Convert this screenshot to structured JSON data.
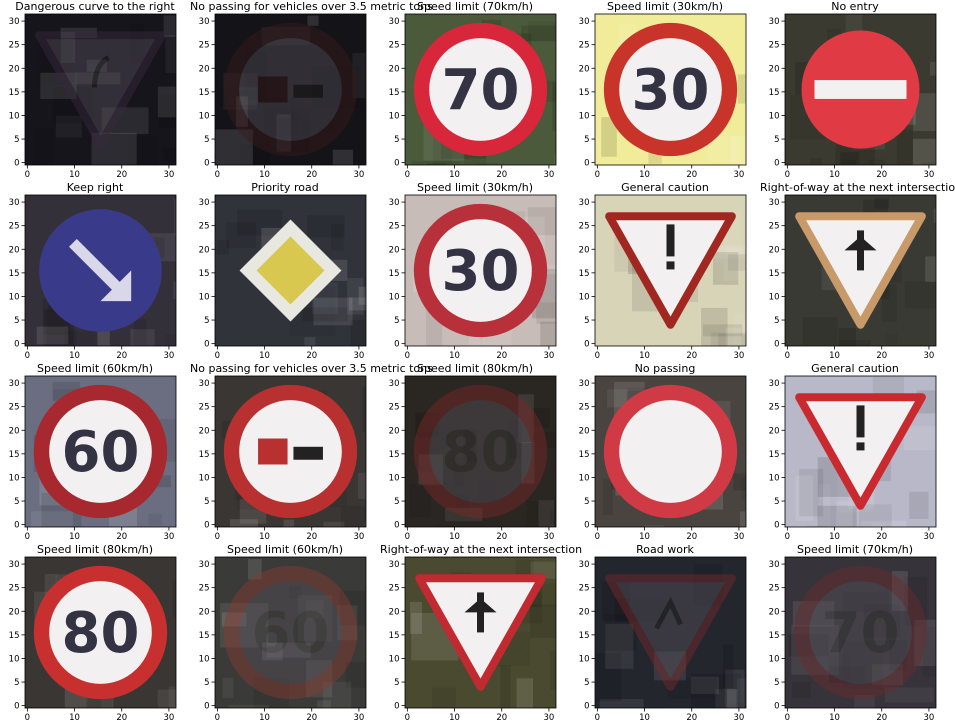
{
  "chart_data": {
    "type": "image-grid",
    "rows": 4,
    "cols": 5,
    "x_ticks": [
      0,
      10,
      20,
      30
    ],
    "y_ticks": [
      0,
      5,
      10,
      15,
      20,
      25,
      30
    ],
    "xlim": [
      -0.5,
      31.5
    ],
    "ylim": [
      31.5,
      -0.5
    ],
    "panels": [
      {
        "title": "Dangerous curve to the right",
        "sign": "triangle",
        "glyph": "curve",
        "text": "",
        "brightness": "dark",
        "bg": "#16151c",
        "color": "#3a2a3e"
      },
      {
        "title": "No passing for vehicles over 3.5 metric tons",
        "sign": "circle",
        "glyph": "truck",
        "text": "",
        "brightness": "dark",
        "bg": "#141318",
        "color": "#3a1a1c"
      },
      {
        "title": "Speed limit (70km/h)",
        "sign": "circle",
        "glyph": "number",
        "text": "70",
        "brightness": "bright",
        "bg": "#4a5a3a",
        "color": "#d8263a"
      },
      {
        "title": "Speed limit (30km/h)",
        "sign": "circle",
        "glyph": "number",
        "text": "30",
        "brightness": "bright",
        "bg": "#f0ec9a",
        "color": "#c8342a"
      },
      {
        "title": "No entry",
        "sign": "noentry",
        "glyph": "bar",
        "text": "",
        "brightness": "normal",
        "bg": "#3a3a30",
        "color": "#e03a44"
      },
      {
        "title": "Keep right",
        "sign": "bluecircle",
        "glyph": "arrow",
        "text": "",
        "brightness": "normal",
        "bg": "#34303a",
        "color": "#3a3a8a"
      },
      {
        "title": "Priority road",
        "sign": "diamond",
        "glyph": "",
        "text": "",
        "brightness": "normal",
        "bg": "#30333a",
        "color": "#d8c850"
      },
      {
        "title": "Speed limit (30km/h)",
        "sign": "circle",
        "glyph": "number",
        "text": "30",
        "brightness": "bright",
        "bg": "#c8bcb8",
        "color": "#b8303a"
      },
      {
        "title": "General caution",
        "sign": "triangle",
        "glyph": "exclaim",
        "text": "",
        "brightness": "normal",
        "bg": "#d8d4b8",
        "color": "#a02820"
      },
      {
        "title": "Right-of-way at the next intersection",
        "sign": "triangle",
        "glyph": "cross",
        "text": "",
        "brightness": "normal",
        "bg": "#3a3a34",
        "color": "#c89a6a"
      },
      {
        "title": "Speed limit (60km/h)",
        "sign": "circle",
        "glyph": "number",
        "text": "60",
        "brightness": "normal",
        "bg": "#6a6e80",
        "color": "#a82830"
      },
      {
        "title": "No passing for vehicles over 3.5 metric tons",
        "sign": "circle",
        "glyph": "truck",
        "text": "",
        "brightness": "normal",
        "bg": "#3a3634",
        "color": "#b83030"
      },
      {
        "title": "Speed limit (80km/h)",
        "sign": "circle",
        "glyph": "number",
        "text": "80",
        "brightness": "dark",
        "bg": "#2a2622",
        "color": "#802828"
      },
      {
        "title": "No passing",
        "sign": "circle",
        "glyph": "",
        "text": "",
        "brightness": "bright",
        "bg": "#4a4440",
        "color": "#d03a44"
      },
      {
        "title": "General caution",
        "sign": "triangle",
        "glyph": "exclaim",
        "text": "",
        "brightness": "bright",
        "bg": "#b8b8c8",
        "color": "#c82a30"
      },
      {
        "title": "Speed limit (80km/h)",
        "sign": "circle",
        "glyph": "number",
        "text": "80",
        "brightness": "normal",
        "bg": "#3a3634",
        "color": "#c83030"
      },
      {
        "title": "Speed limit (60km/h)",
        "sign": "circle",
        "glyph": "number",
        "text": "60",
        "brightness": "dark",
        "bg": "#3a3a38",
        "color": "#8a3a30"
      },
      {
        "title": "Right-of-way at the next intersection",
        "sign": "triangle",
        "glyph": "cross",
        "text": "",
        "brightness": "normal",
        "bg": "#4a4a30",
        "color": "#c02a30"
      },
      {
        "title": "Road work",
        "sign": "triangle",
        "glyph": "worker",
        "text": "",
        "brightness": "dark",
        "bg": "#24262e",
        "color": "#7a2a2a"
      },
      {
        "title": "Speed limit (70km/h)",
        "sign": "circle",
        "glyph": "number",
        "text": "70",
        "brightness": "dark",
        "bg": "#36343a",
        "color": "#6a2a2e"
      }
    ]
  }
}
